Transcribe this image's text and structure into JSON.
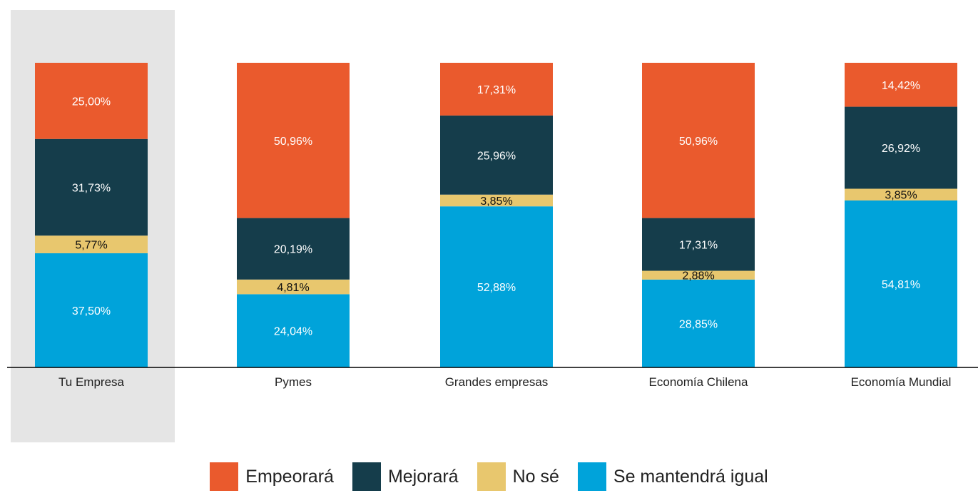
{
  "chart_data": {
    "type": "bar",
    "stacked": true,
    "percent": true,
    "categories": [
      "Tu Empresa",
      "Pymes",
      "Grandes empresas",
      "Economía Chilena",
      "Economía Mundial"
    ],
    "highlighted_category": "Tu Empresa",
    "series": [
      {
        "name": "Se mantendrá igual",
        "color": "#00A3DA",
        "values": [
          37.5,
          24.04,
          52.88,
          28.85,
          54.81
        ],
        "labels": [
          "37,50%",
          "24,04%",
          "52,88%",
          "28,85%",
          "54,81%"
        ]
      },
      {
        "name": "No sé",
        "color": "#E8C76E",
        "values": [
          5.77,
          4.81,
          3.85,
          2.88,
          3.85
        ],
        "labels": [
          "5,77%",
          "4,81%",
          "3,85%",
          "2,88%",
          "3,85%"
        ]
      },
      {
        "name": "Mejorará",
        "color": "#153D4B",
        "values": [
          31.73,
          20.19,
          25.96,
          17.31,
          26.92
        ],
        "labels": [
          "31,73%",
          "20,19%",
          "25,96%",
          "17,31%",
          "26,92%"
        ]
      },
      {
        "name": "Empeorará",
        "color": "#EA5A2D",
        "values": [
          25.0,
          50.96,
          17.31,
          50.96,
          14.42
        ],
        "labels": [
          "25,00%",
          "50,96%",
          "17,31%",
          "50,96%",
          "14,42%"
        ]
      }
    ],
    "legend_order": [
      "Empeorará",
      "Mejorará",
      "No sé",
      "Se mantendrá igual"
    ],
    "legend_position": "bottom",
    "ylim": [
      0,
      100
    ],
    "grid": false,
    "title": "",
    "xlabel": "",
    "ylabel": ""
  }
}
